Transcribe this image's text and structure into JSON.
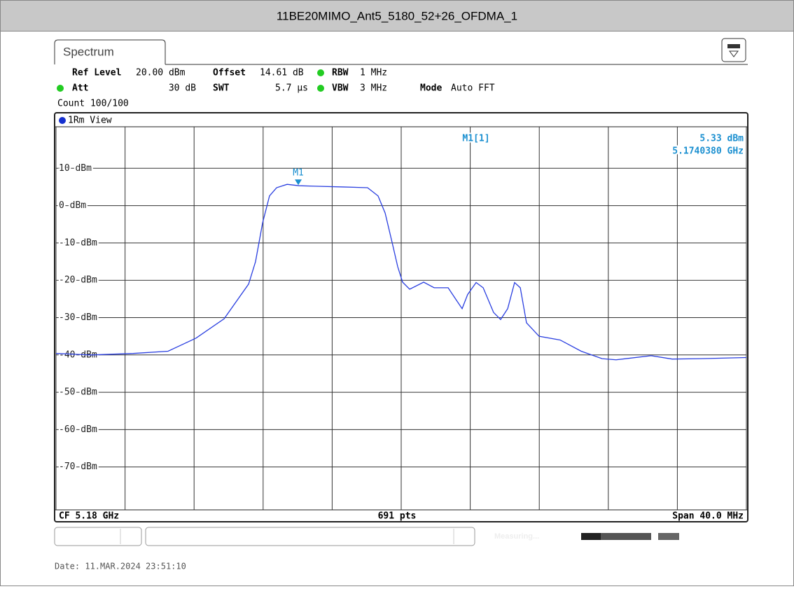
{
  "header": {
    "title": "11BE20MIMO_Ant5_5180_52+26_OFDMA_1"
  },
  "tab": "Spectrum",
  "settings": {
    "ref_level_label": "Ref Level",
    "ref_level": "20.00 dBm",
    "offset_label": "Offset",
    "offset": "14.61 dB",
    "rbw_label": "RBW",
    "rbw": "1 MHz",
    "att_label": "Att",
    "att": "30 dB",
    "swt_label": "SWT",
    "swt": "5.7 µs",
    "vbw_label": "VBW",
    "vbw": "3 MHz",
    "mode_label": "Mode",
    "mode": "Auto FFT",
    "count": "Count 100/100"
  },
  "view_label": "1Rm View",
  "footer": {
    "center_freq": "CF 5.18 GHz",
    "points": "691 pts",
    "span": "Span 40.0 MHz"
  },
  "status": "Measuring...",
  "date": "Date: 11.MAR.2024  23:51:10",
  "chart_data": {
    "type": "line",
    "x": [
      5.16,
      5.16203,
      5.16446,
      5.16649,
      5.16811,
      5.16974,
      5.17116,
      5.17156,
      5.17197,
      5.17237,
      5.17278,
      5.17339,
      5.17408,
      5.17501,
      5.17663,
      5.17805,
      5.17866,
      5.17907,
      5.17947,
      5.1798,
      5.18008,
      5.18049,
      5.1813,
      5.18191,
      5.18272,
      5.18312,
      5.18353,
      5.18385,
      5.18434,
      5.18475,
      5.18535,
      5.18576,
      5.18617,
      5.18657,
      5.1869,
      5.18726,
      5.18799,
      5.18921,
      5.19043,
      5.19164,
      5.19245,
      5.19448,
      5.1957,
      5.19732,
      5.2
    ],
    "series": [
      {
        "name": "1Rm",
        "color": "#2a3fe0",
        "values": [
          -39.6,
          -40,
          -39.6,
          -39,
          -35.5,
          -30.3,
          -21,
          -15,
          -4.6,
          2.6,
          4.8,
          5.7,
          5.33,
          5.2,
          5,
          4.8,
          2.6,
          -2,
          -9.8,
          -16.4,
          -20.5,
          -22.4,
          -20.5,
          -22,
          -22,
          -24.8,
          -27.6,
          -23.8,
          -20.6,
          -22,
          -28.6,
          -30.5,
          -27.6,
          -20.6,
          -22,
          -31.4,
          -35,
          -36,
          -39,
          -41,
          -41.3,
          -40.2,
          -41.1,
          -41,
          -40.7
        ]
      }
    ],
    "xlim": [
      5.16,
      5.2
    ],
    "xticks": [
      5.16,
      5.164,
      5.168,
      5.172,
      5.176,
      5.18,
      5.184,
      5.188,
      5.192,
      5.196,
      5.2
    ],
    "ylim": [
      -80,
      20
    ],
    "yticks": [
      {
        "value": 10,
        "label": "10 dBm"
      },
      {
        "value": 0,
        "label": "0 dBm"
      },
      {
        "value": -10,
        "label": "-10 dBm"
      },
      {
        "value": -20,
        "label": "-20 dBm"
      },
      {
        "value": -30,
        "label": "-30 dBm"
      },
      {
        "value": -40,
        "label": "-40 dBm"
      },
      {
        "value": -50,
        "label": "-50 dBm"
      },
      {
        "value": -60,
        "label": "-60 dBm"
      },
      {
        "value": -70,
        "label": "-70 dBm"
      }
    ],
    "grid": true,
    "marker": {
      "label": "M1",
      "readout": "M1[1]",
      "x": 5.174038,
      "x_label": "5.1740380 GHz",
      "value": 5.33,
      "value_label": "5.33 dBm",
      "color": "#1a8fd0"
    }
  }
}
